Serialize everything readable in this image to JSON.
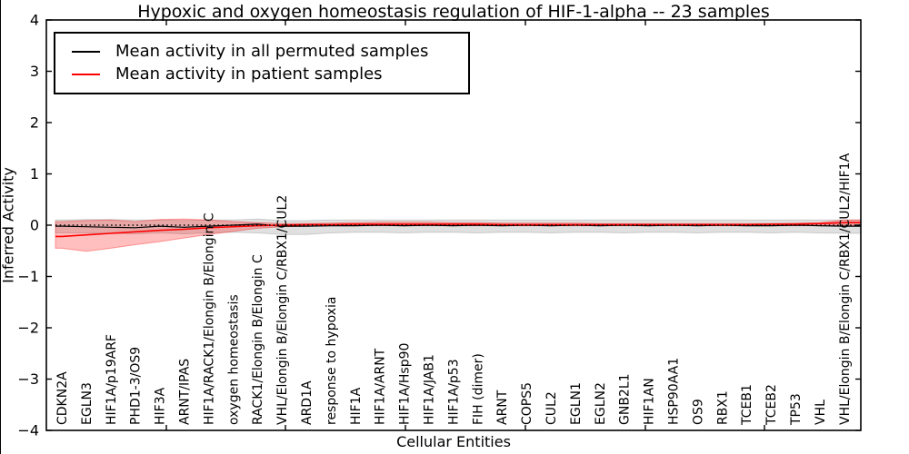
{
  "figure": {
    "title": "Hypoxic and oxygen homeostasis regulation of HIF-1-alpha -- 23 samples",
    "xlabel": "Cellular Entities",
    "ylabel": "Inferred Activity"
  },
  "legend": {
    "entries": [
      {
        "label": "Mean activity in all permuted samples",
        "color": "#000000"
      },
      {
        "label": "Mean activity in patient samples",
        "color": "#ff0000"
      }
    ]
  },
  "chart_data": {
    "type": "line",
    "title": "Hypoxic and oxygen homeostasis regulation of HIF-1-alpha -- 23 samples",
    "xlabel": "Cellular Entities",
    "ylabel": "Inferred Activity",
    "ylim": [
      -4,
      4
    ],
    "y_ticks": [
      -4,
      -3,
      -2,
      -1,
      0,
      1,
      2,
      3,
      4
    ],
    "grid": false,
    "legend_position": "upper left",
    "zero_reference_line": 0,
    "categories": [
      "CDKN2A",
      "EGLN3",
      "HIF1A/p19ARF",
      "PHD1-3/OS9",
      "HIF3A",
      "ARNT/IPAS",
      "HIF1A/RACK1/Elongin B/Elongin C",
      "oxygen homeostasis",
      "RACK1/Elongin B/Elongin C",
      "VHL/Elongin B/Elongin C/RBX1/CUL2",
      "ARD1A",
      "response to hypoxia",
      "HIF1A",
      "HIF1A/ARNT",
      "HIF1A/Hsp90",
      "HIF1A/JAB1",
      "HIF1A/p53",
      "FIH (dimer)",
      "ARNT",
      "COPS5",
      "CUL2",
      "EGLN1",
      "EGLN2",
      "GNB2L1",
      "HIF1AN",
      "HSP90AA1",
      "OS9",
      "RBX1",
      "TCEB1",
      "TCEB2",
      "TP53",
      "VHL",
      "VHL/Elongin B/Elongin C/RBX1/CUL2/HIF1A"
    ],
    "series": [
      {
        "name": "Mean activity in all permuted samples",
        "color": "#000000",
        "band_color": "#000000",
        "band_opacity": 0.12,
        "line_width": 1.2,
        "values": [
          -0.02,
          -0.03,
          -0.04,
          -0.05,
          -0.02,
          -0.04,
          -0.02,
          0.0,
          0.02,
          -0.02,
          -0.02,
          -0.01,
          -0.01,
          0.0,
          -0.01,
          0.0,
          -0.01,
          0.0,
          -0.01,
          0.0,
          -0.01,
          0.0,
          -0.01,
          0.0,
          -0.01,
          0.0,
          -0.01,
          0.0,
          -0.01,
          -0.01,
          0.0,
          -0.01,
          -0.02
        ],
        "band_upper": [
          0.1,
          0.11,
          0.11,
          0.1,
          0.1,
          0.09,
          0.1,
          0.1,
          0.12,
          0.09,
          0.09,
          0.1,
          0.1,
          0.1,
          0.1,
          0.1,
          0.1,
          0.1,
          0.1,
          0.1,
          0.1,
          0.1,
          0.1,
          0.1,
          0.1,
          0.1,
          0.1,
          0.1,
          0.1,
          0.1,
          0.1,
          0.1,
          0.1
        ],
        "band_lower": [
          -0.15,
          -0.15,
          -0.16,
          -0.17,
          -0.15,
          -0.17,
          -0.15,
          -0.14,
          -0.15,
          -0.18,
          -0.18,
          -0.15,
          -0.14,
          -0.14,
          -0.15,
          -0.14,
          -0.14,
          -0.15,
          -0.14,
          -0.14,
          -0.15,
          -0.14,
          -0.14,
          -0.15,
          -0.14,
          -0.14,
          -0.15,
          -0.14,
          -0.14,
          -0.15,
          -0.14,
          -0.15,
          -0.16
        ]
      },
      {
        "name": "Mean activity in patient samples",
        "color": "#ff0000",
        "band_color": "#ff0000",
        "band_opacity": 0.25,
        "line_width": 1.6,
        "values": [
          -0.22,
          -0.19,
          -0.16,
          -0.13,
          -0.1,
          -0.08,
          -0.05,
          -0.03,
          -0.01,
          0.0,
          0.01,
          0.01,
          0.02,
          0.02,
          0.02,
          0.02,
          0.02,
          0.02,
          0.01,
          0.01,
          0.01,
          0.01,
          0.01,
          0.01,
          0.01,
          0.01,
          0.01,
          0.01,
          0.01,
          0.02,
          0.02,
          0.03,
          0.05
        ],
        "band_upper": [
          0.07,
          0.09,
          0.1,
          0.07,
          0.11,
          0.12,
          0.1,
          0.07,
          0.05,
          0.03,
          0.03,
          0.04,
          0.05,
          0.06,
          0.06,
          0.06,
          0.05,
          0.05,
          0.04,
          0.04,
          0.04,
          0.04,
          0.03,
          0.03,
          0.03,
          0.03,
          0.03,
          0.03,
          0.03,
          0.03,
          0.04,
          0.05,
          0.1
        ],
        "band_lower": [
          -0.45,
          -0.51,
          -0.45,
          -0.38,
          -0.32,
          -0.25,
          -0.18,
          -0.12,
          -0.06,
          -0.03,
          -0.02,
          -0.01,
          -0.01,
          -0.01,
          -0.01,
          -0.01,
          -0.01,
          -0.01,
          -0.01,
          -0.01,
          -0.01,
          -0.01,
          -0.01,
          -0.01,
          -0.01,
          -0.01,
          -0.01,
          -0.01,
          -0.01,
          -0.01,
          -0.01,
          -0.01,
          0.0
        ]
      }
    ]
  }
}
